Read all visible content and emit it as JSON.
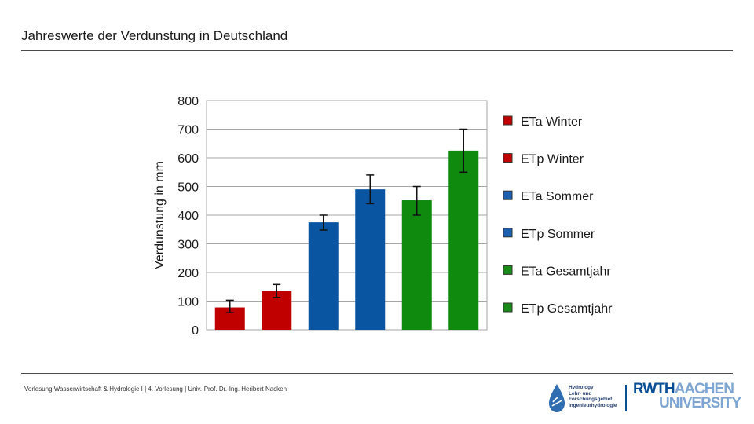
{
  "slide": {
    "title": "Jahreswerte der Verdunstung in Deutschland",
    "footer": "Vorlesung Wasserwirtschaft & Hydrologie I | 4. Vorlesung | Univ.-Prof. Dr.-Ing. Heribert Nacken"
  },
  "logos": {
    "hydro_lines": [
      "Hydrology",
      "Lehr- und",
      "Forschungsgebiet",
      "Ingenieurhydrologie"
    ],
    "rwth": "RWTH",
    "aachen": "AACHEN",
    "university": "UNIVERSITY"
  },
  "colors": {
    "red": "#c00000",
    "blue": "#0a55a2",
    "green": "#0f8a0f",
    "legend_red": "#c00000",
    "legend_blue": "#1f5fb0",
    "legend_green": "#1a8a1a"
  },
  "chart_data": {
    "type": "bar",
    "title": "",
    "xlabel": "",
    "ylabel": "Verdunstung in mm",
    "ylim": [
      0,
      800
    ],
    "yticks": [
      0,
      100,
      200,
      300,
      400,
      500,
      600,
      700,
      800
    ],
    "grid": true,
    "legend_position": "right",
    "series": [
      {
        "name": "ETa Winter",
        "value": 78,
        "err_low": 60,
        "err_high": 103,
        "color": "red"
      },
      {
        "name": "ETp Winter",
        "value": 135,
        "err_low": 113,
        "err_high": 158,
        "color": "red"
      },
      {
        "name": "ETa Sommer",
        "value": 375,
        "err_low": 348,
        "err_high": 400,
        "color": "blue"
      },
      {
        "name": "ETp Sommer",
        "value": 490,
        "err_low": 440,
        "err_high": 540,
        "color": "blue"
      },
      {
        "name": "ETa Gesamtjahr",
        "value": 452,
        "err_low": 400,
        "err_high": 500,
        "color": "green"
      },
      {
        "name": "ETp Gesamtjahr",
        "value": 625,
        "err_low": 550,
        "err_high": 700,
        "color": "green"
      }
    ]
  }
}
